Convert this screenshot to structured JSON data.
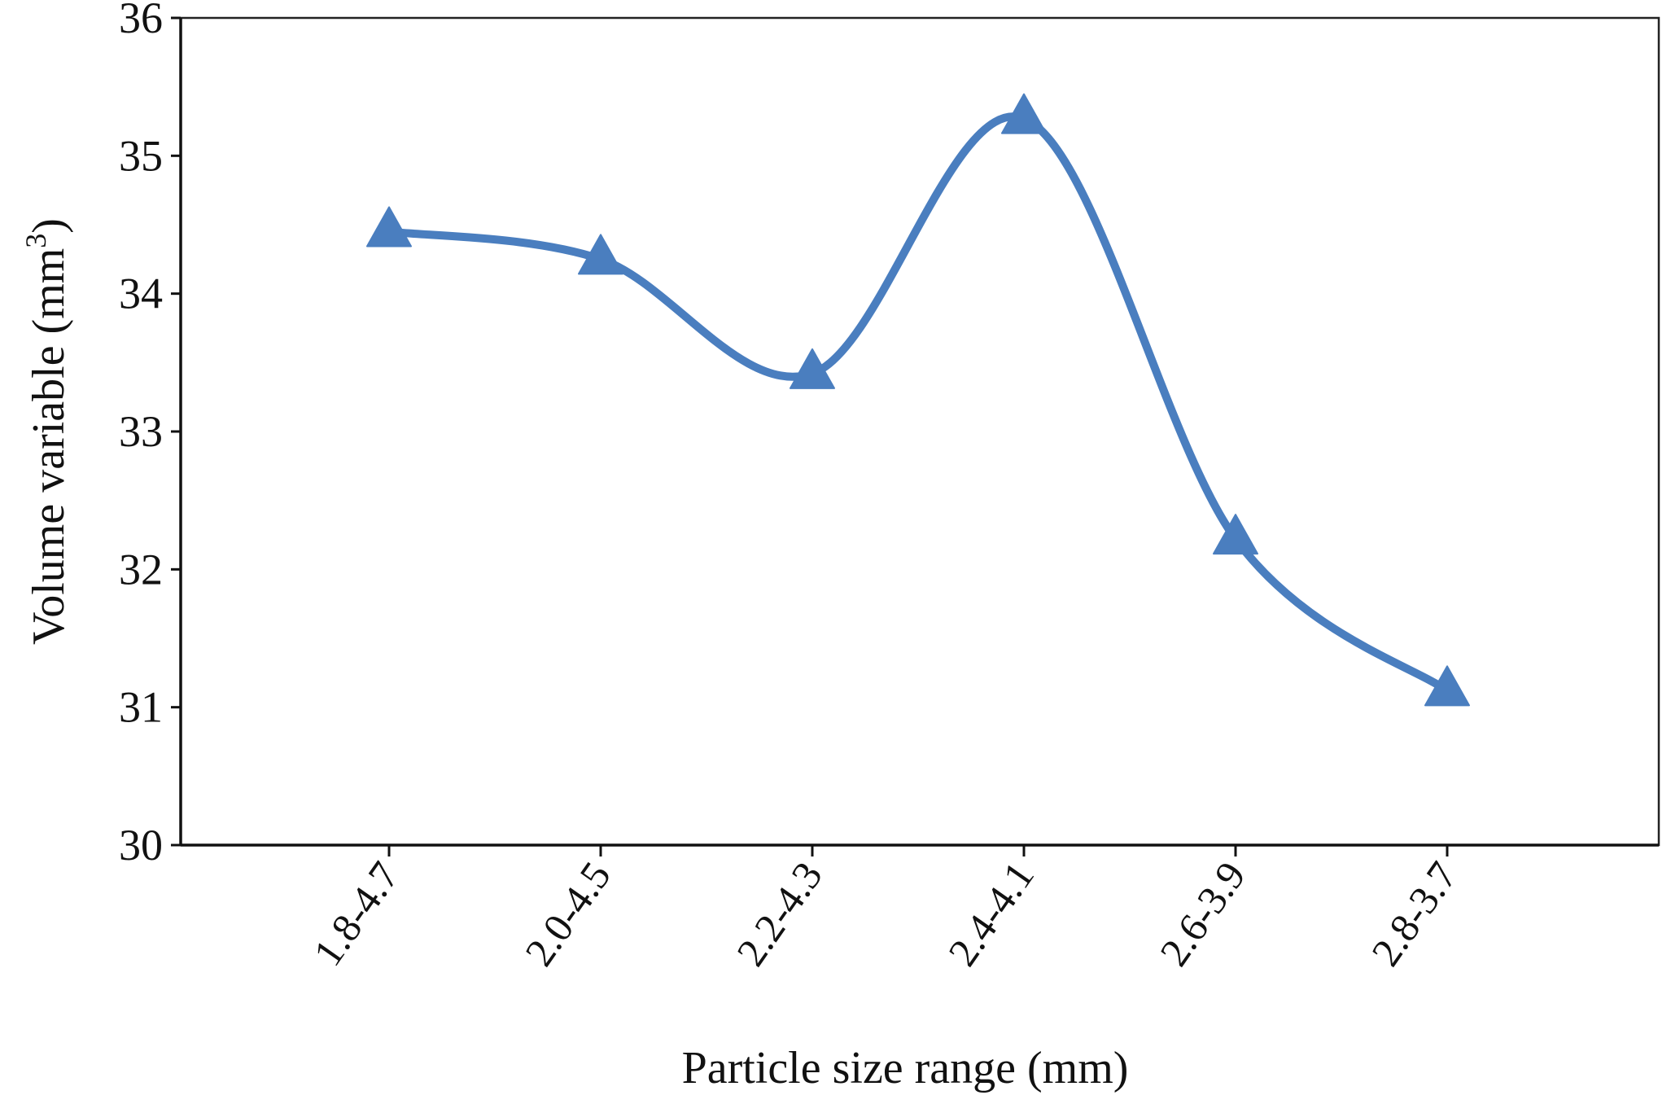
{
  "chart_data": {
    "type": "line",
    "title": "",
    "xlabel": "Particle size range (mm)",
    "ylabel": {
      "main": "Volume variable (mm",
      "superscript": "3",
      "close": ")"
    },
    "categories": [
      "1.8-4.7",
      "2.0-4.5",
      "2.2-4.3",
      "2.4-4.1",
      "2.6-3.9",
      "2.8-3.7"
    ],
    "series": [
      {
        "name": "Volume variable",
        "values": [
          34.45,
          34.25,
          33.42,
          35.27,
          32.22,
          31.12
        ],
        "color": "#4a7ebf",
        "marker": "triangle",
        "smooth": true
      }
    ],
    "ylim": [
      30,
      36
    ],
    "yticks": [
      "30",
      "31",
      "32",
      "33",
      "34",
      "35",
      "36"
    ],
    "grid": false,
    "legend": "none"
  }
}
